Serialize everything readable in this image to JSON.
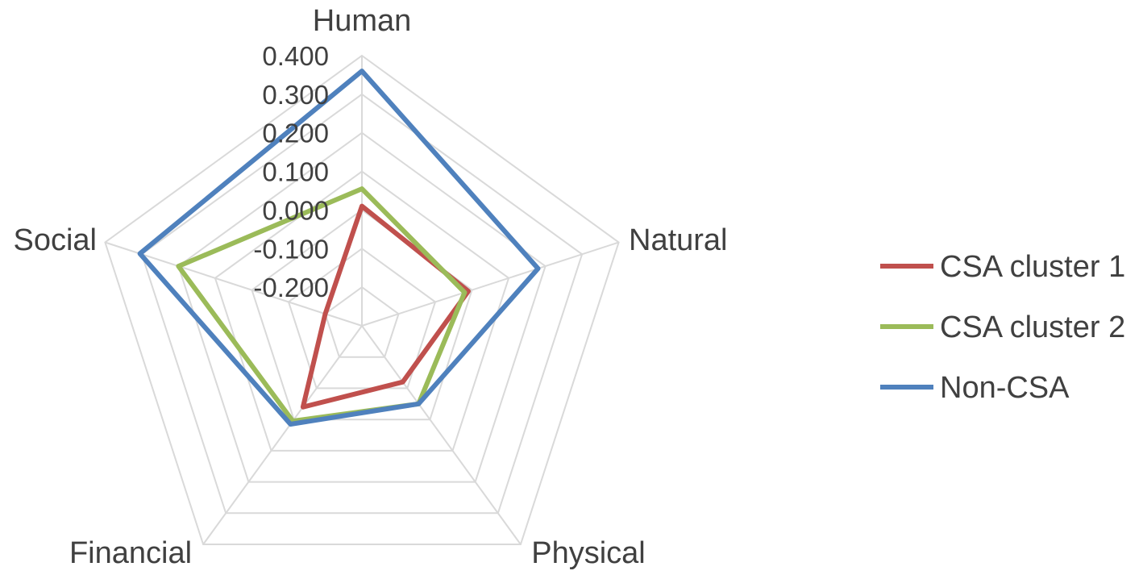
{
  "chart_data": {
    "type": "radar",
    "axes": [
      "Human",
      "Natural",
      "Physical",
      "Financial",
      "Social"
    ],
    "rlim": [
      -0.3,
      0.4
    ],
    "ticks": [
      "-0.200",
      "-0.100",
      "0.000",
      "0.100",
      "0.200",
      "0.300",
      "0.400"
    ],
    "tick_values": [
      -0.2,
      -0.1,
      0.0,
      0.1,
      0.2,
      0.3,
      0.4
    ],
    "grid": true,
    "legend_position": "right",
    "series": [
      {
        "name": "CSA cluster 1",
        "color": "#c0504d",
        "values": [
          0.01,
          -0.01,
          -0.12,
          -0.04,
          -0.2
        ]
      },
      {
        "name": "CSA cluster 2",
        "color": "#9bbb59",
        "values": [
          0.055,
          -0.02,
          -0.05,
          0.005,
          0.2
        ]
      },
      {
        "name": "Non-CSA",
        "color": "#4f81bd",
        "values": [
          0.36,
          0.18,
          -0.05,
          0.015,
          0.305
        ]
      }
    ]
  }
}
